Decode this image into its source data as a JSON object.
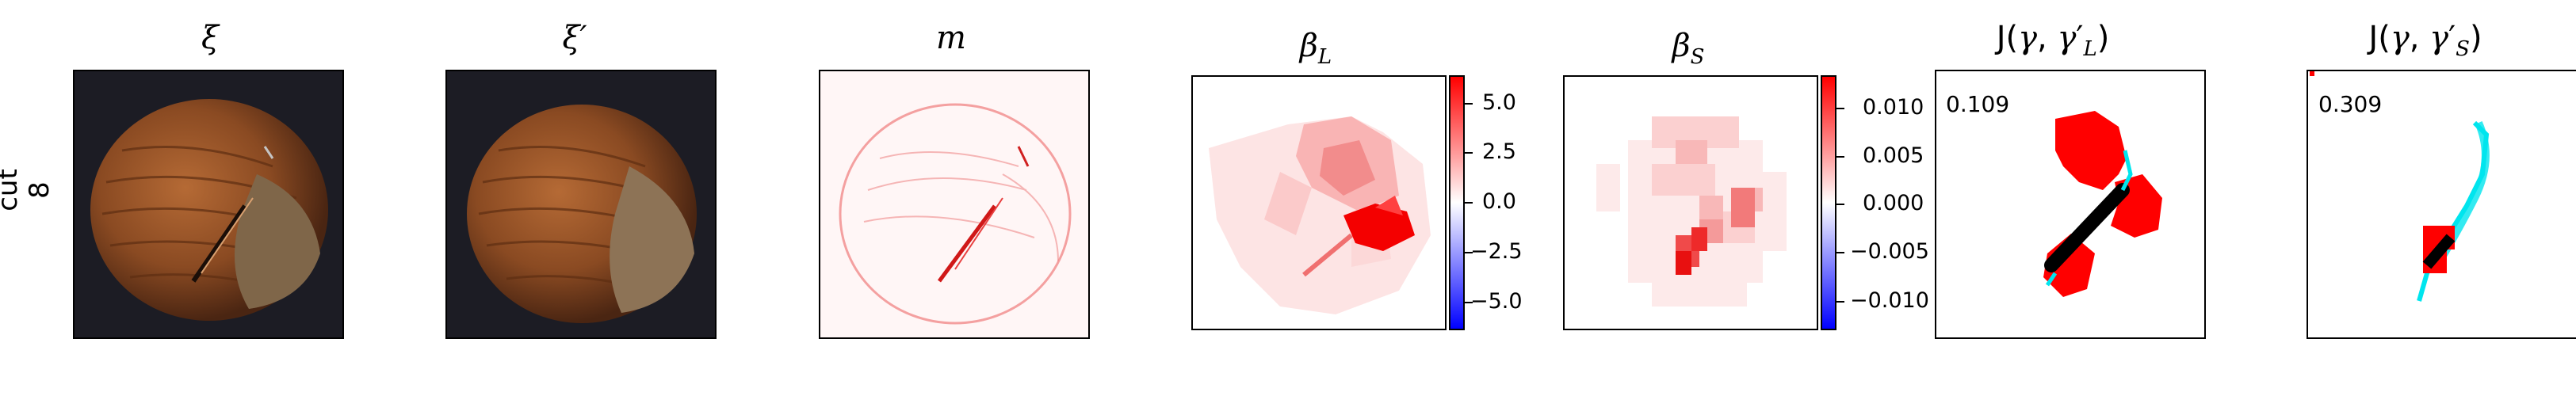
{
  "row_label": "cut\n8",
  "panels": [
    {
      "id": "xi",
      "title": "ξ"
    },
    {
      "id": "xi_prime",
      "title": "ξ′"
    },
    {
      "id": "m",
      "title": "m"
    },
    {
      "id": "beta_L",
      "title": "β_L",
      "colorbar": {
        "ticks": [
          "5.0",
          "2.5",
          "0.0",
          "−2.5",
          "−5.0"
        ]
      }
    },
    {
      "id": "beta_S",
      "title": "β_S",
      "colorbar": {
        "ticks": [
          "0.010",
          "0.005",
          "0.000",
          "−0.005",
          "−0.010"
        ]
      }
    },
    {
      "id": "J_L",
      "title": "J(γ, γ′_L)",
      "value": "0.109"
    },
    {
      "id": "J_S",
      "title": "J(γ, γ′_S)",
      "value": "0.309"
    }
  ],
  "colors": {
    "red": "#ff0000",
    "blue": "#0000ff",
    "cyan": "#00e5ee",
    "black": "#000000",
    "hazelnut": "#8a4a22",
    "bg_dark": "#1c1c24"
  }
}
